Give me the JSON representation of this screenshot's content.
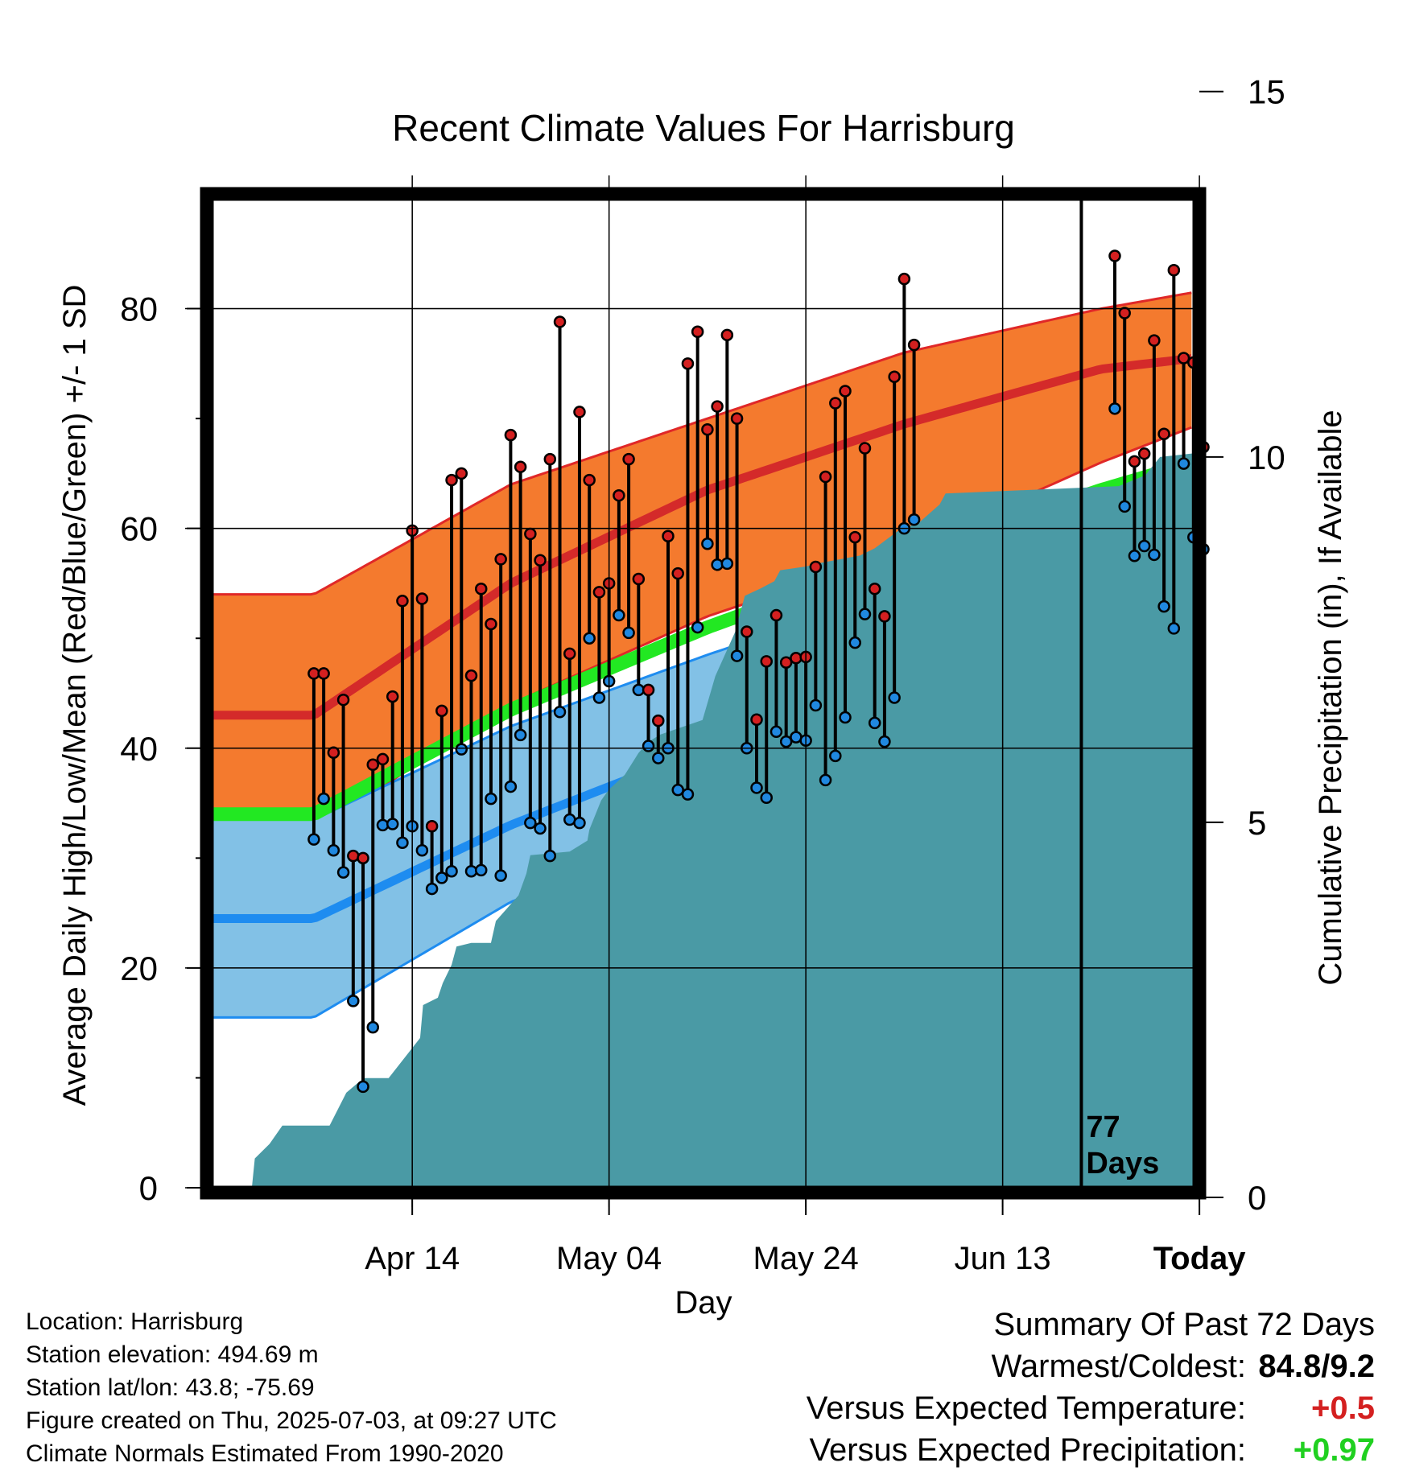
{
  "chart_data": {
    "type": "line",
    "title": "Recent Climate Values For Harrisburg",
    "xlabel": "Day",
    "ylabel": "Average Daily High/Low/Mean (Red/Blue/Green) +/- 1 SD",
    "y2label": "Cumulative Precipitation (in), If Available",
    "x_ticks": [
      "Apr 14",
      "May 04",
      "May 24",
      "Jun 13",
      "Today"
    ],
    "x_tick_days": [
      10,
      30,
      50,
      70,
      90
    ],
    "x_range_days": [
      -10.3,
      89.5
    ],
    "y_ticks": [
      0,
      20,
      40,
      60,
      80
    ],
    "ylim": [
      0,
      90
    ],
    "y2_ticks": [
      0,
      5,
      10,
      15
    ],
    "y2lim": [
      0,
      11
    ],
    "grid": true,
    "today_label": "77\nDays",
    "normals": {
      "high_mean": {
        "day": [
          0,
          20,
          40,
          60,
          80,
          89.5
        ],
        "value": [
          43,
          55,
          63.5,
          69.5,
          74.5,
          75.5
        ]
      },
      "high_sd_upper": {
        "day": [
          0,
          20,
          40,
          60,
          80,
          89.5
        ],
        "value": [
          54,
          64,
          70,
          76,
          80,
          81.5
        ]
      },
      "high_sd_lower": {
        "day": [
          0,
          20,
          40,
          60,
          80,
          89.5
        ],
        "value": [
          32.5,
          44,
          52,
          58,
          66,
          69.3
        ]
      },
      "mean": {
        "day": [
          0,
          20,
          40,
          60,
          80,
          89.5
        ],
        "value": [
          34,
          43.5,
          51,
          57.5,
          63.5,
          66
        ]
      },
      "low_mean": {
        "day": [
          0,
          20,
          40,
          60,
          80,
          89.5
        ],
        "value": [
          24.5,
          33,
          40,
          46,
          52.5,
          56.5
        ]
      },
      "low_sd_upper": {
        "day": [
          0,
          20,
          40,
          60,
          80,
          89.5
        ],
        "value": [
          33.5,
          42,
          48.5,
          54.5,
          60.5,
          62.5
        ]
      },
      "low_sd_lower": {
        "day": [
          0,
          20,
          40,
          60,
          80,
          89.5
        ],
        "value": [
          15.5,
          26,
          33,
          39.5,
          46,
          50
        ]
      }
    },
    "daily": {
      "day": [
        0,
        1,
        2,
        3,
        4,
        5,
        6,
        7,
        8,
        9,
        10,
        11,
        12,
        13,
        14,
        15,
        16,
        17,
        18,
        19,
        20,
        21,
        22,
        23,
        24,
        25,
        26,
        27,
        28,
        29,
        30,
        31,
        32,
        33,
        34,
        35,
        36,
        37,
        38,
        39,
        40,
        41,
        42,
        43,
        44,
        45,
        46,
        47,
        48,
        49,
        50,
        51,
        52,
        53,
        54,
        55,
        56,
        57,
        58,
        59,
        60,
        61,
        82,
        83,
        84,
        85,
        86,
        87,
        88,
        89,
        90,
        91
      ],
      "high": [
        46.8,
        46.8,
        39.6,
        44.4,
        30.2,
        30.0,
        38.5,
        39.0,
        44.7,
        53.4,
        59.8,
        53.6,
        32.9,
        43.4,
        64.4,
        65.0,
        46.6,
        54.5,
        51.3,
        57.2,
        68.5,
        65.6,
        59.5,
        57.1,
        66.3,
        78.8,
        48.6,
        70.6,
        64.4,
        54.2,
        55.0,
        63.0,
        66.3,
        55.4,
        45.3,
        42.5,
        59.3,
        55.9,
        75.0,
        77.9,
        69.0,
        71.1,
        77.6,
        70.0,
        50.6,
        42.6,
        47.9,
        52.1,
        47.8,
        48.2,
        48.3,
        56.5,
        64.7,
        71.4,
        72.5,
        59.2,
        67.3,
        54.5,
        52.0,
        73.8,
        82.7,
        76.7,
        84.8,
        79.6,
        66.1,
        66.8,
        77.1,
        68.6,
        83.5,
        75.5,
        75.1,
        67.4
      ],
      "low": [
        31.7,
        35.4,
        30.7,
        28.7,
        17.0,
        9.2,
        14.6,
        33.0,
        33.1,
        31.4,
        32.9,
        30.7,
        27.2,
        28.2,
        28.8,
        39.9,
        28.8,
        28.9,
        35.4,
        28.4,
        36.5,
        41.2,
        33.2,
        32.7,
        30.2,
        43.3,
        33.5,
        33.2,
        50.0,
        44.6,
        46.1,
        52.1,
        50.5,
        45.3,
        40.2,
        39.1,
        40.0,
        36.2,
        35.8,
        51.0,
        58.6,
        56.7,
        56.8,
        48.4,
        40.0,
        36.4,
        35.5,
        41.5,
        40.6,
        41.0,
        40.7,
        43.9,
        37.1,
        39.3,
        42.8,
        49.6,
        52.2,
        42.3,
        40.6,
        44.6,
        60.0,
        60.8,
        70.9,
        62.0,
        57.5,
        58.4,
        57.6,
        52.9,
        50.9,
        65.9,
        59.2,
        58.1
      ]
    },
    "precip": {
      "day": [
        -10.3,
        3,
        4,
        5,
        6,
        7,
        8,
        9,
        10,
        11,
        12,
        13,
        14,
        15,
        16,
        17,
        18,
        19,
        20,
        21,
        22,
        23,
        24,
        25,
        26,
        27,
        28,
        29,
        30,
        31,
        32,
        33,
        34,
        35,
        36,
        37,
        38,
        39,
        40,
        41,
        42,
        43,
        44,
        45,
        46,
        47,
        48,
        49,
        50,
        51,
        52,
        53,
        54,
        55,
        56,
        57,
        58,
        59,
        60,
        61,
        62,
        63,
        64,
        65,
        66,
        67,
        68,
        69,
        70,
        71,
        72,
        73,
        74,
        75,
        76,
        77,
        78,
        79,
        80,
        81,
        82,
        83,
        84,
        85,
        86,
        87,
        88,
        89,
        90,
        91,
        89.5
      ],
      "value": [
        0,
        0,
        0.1,
        0.1,
        0.15,
        0.15,
        0.25,
        0.25,
        0.25,
        0.3,
        0.35,
        0.35,
        0.35,
        0.7,
        0.8,
        0.8,
        0.9,
        0.9,
        0.9,
        0.9,
        1.0,
        1.0,
        1.0,
        1.05,
        1.05,
        1.1,
        1.15,
        1.2,
        1.2,
        1.25,
        1.3,
        1.3,
        1.3,
        1.3,
        1.35,
        1.35,
        1.35,
        1.35,
        1.35,
        1.4,
        1.4,
        1.4,
        1.45,
        1.45,
        1.5,
        1.55,
        1.6,
        1.7,
        1.8,
        1.85,
        1.9,
        1.9,
        1.95,
        2.0,
        2.0,
        2.05,
        2.1,
        2.15,
        2.2,
        2.25,
        2.3,
        2.4,
        2.4,
        2.45,
        2.5,
        2.5,
        2.55,
        2.6,
        2.6,
        2.65,
        2.7,
        2.7,
        2.75,
        2.8,
        2.85,
        2.9,
        2.95,
        2.95,
        2.95,
        3.0,
        3.0,
        3.0,
        3.05,
        3.05,
        3.1,
        3.1,
        3.1,
        3.1,
        3.15,
        3.15,
        3.15
      ]
    },
    "precip_steps": {
      "day": [
        -10.3,
        -6.3,
        -6.0,
        -4.5,
        -3.2,
        1.6,
        3.3,
        4.6,
        5.2,
        7.6,
        10.8,
        11.1,
        12.6,
        13.1,
        14.0,
        14.5,
        16.0,
        18.0,
        18.5,
        20.8,
        21.6,
        22.0,
        26.0,
        27.8,
        28.0,
        29.2,
        30.0,
        31.6,
        33.0,
        34.0,
        35.2,
        39.5,
        40.8,
        42.8,
        43.8,
        45.4,
        46.8,
        47.4,
        50.0,
        51.5,
        55.5,
        57.0,
        58.0,
        59.5,
        61.5,
        63.6,
        64.2,
        81.8,
        84.5,
        86.0,
        89.5
      ],
      "value": [
        0,
        0,
        0.4,
        0.6,
        0.85,
        0.85,
        1.3,
        1.45,
        1.5,
        1.5,
        2.05,
        2.5,
        2.6,
        2.8,
        3.05,
        3.3,
        3.35,
        3.35,
        3.65,
        4.0,
        4.3,
        4.55,
        4.6,
        4.75,
        4.9,
        5.3,
        5.45,
        5.65,
        5.95,
        6.1,
        6.2,
        6.4,
        7.0,
        7.6,
        8.1,
        8.2,
        8.3,
        8.45,
        8.5,
        8.55,
        8.65,
        8.75,
        8.85,
        9.0,
        9.1,
        9.35,
        9.5,
        9.6,
        9.75,
        10.0,
        10.05
      ]
    }
  },
  "footer": {
    "location": "Location: Harrisburg",
    "elevation": "Station elevation: 494.69 m",
    "latlon": "Station lat/lon: 43.8; -75.69",
    "created": "Figure created on Thu, 2025-07-03, at 09:27 UTC",
    "normals": "Climate Normals Estimated From 1990-2020"
  },
  "summary": {
    "title": "Summary Of Past 72 Days",
    "warmest_label": "Warmest/Coldest:",
    "warmest_value": "84.8/9.2",
    "temp_label": "Versus Expected Temperature:",
    "temp_value": "+0.5",
    "precip_label": "Versus Expected Precipitation:",
    "precip_value": "+0.97",
    "temp_color": "#d42020",
    "precip_color": "#20d020"
  },
  "colors": {
    "high_band": "#f47a2e",
    "high_mean": "#d42a2a",
    "low_band": "#82c1e6",
    "low_mean": "#1e8cf0",
    "mean": "#22e822",
    "precip": "#4a9aa5",
    "high_dot": "#d42020",
    "low_dot": "#2088e0"
  }
}
